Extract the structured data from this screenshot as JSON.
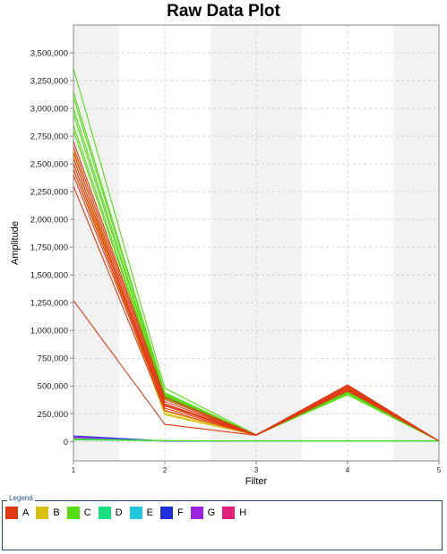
{
  "chart_data": {
    "type": "line",
    "title": "Raw Data Plot",
    "xlabel": "Filter",
    "ylabel": "Amplitude",
    "x": [
      1,
      2,
      3,
      4,
      5
    ],
    "xlim": [
      1,
      5
    ],
    "ylim": [
      -175000,
      3750000
    ],
    "x_ticks": [
      "1",
      "2",
      "3",
      "4",
      "5"
    ],
    "y_ticks": [
      0,
      250000,
      500000,
      750000,
      1000000,
      1250000,
      1500000,
      1750000,
      2000000,
      2250000,
      2500000,
      2750000,
      3000000,
      3250000,
      3500000
    ],
    "y_tick_labels": [
      "0",
      "250,000",
      "500,000",
      "750,000",
      "1,000,000",
      "1,250,000",
      "1,500,000",
      "1,750,000",
      "2,000,000",
      "2,250,000",
      "2,500,000",
      "2,750,000",
      "3,000,000",
      "3,250,000",
      "3,500,000"
    ],
    "grid": true,
    "legend_title": "Legend",
    "legend_position": "bottom",
    "series": [
      {
        "name": "A",
        "color": "#e03a14",
        "lines": [
          [
            2700000,
            400000,
            60000,
            510000,
            5000
          ],
          [
            2650000,
            380000,
            58000,
            500000,
            5000
          ],
          [
            2600000,
            360000,
            60000,
            495000,
            5000
          ],
          [
            2550000,
            340000,
            59000,
            490000,
            5000
          ],
          [
            2500000,
            330000,
            60000,
            480000,
            5000
          ],
          [
            2450000,
            320000,
            58000,
            470000,
            5000
          ],
          [
            2400000,
            300000,
            60000,
            465000,
            5000
          ],
          [
            2300000,
            280000,
            57000,
            460000,
            5000
          ],
          [
            1270000,
            155000,
            55000,
            455000,
            5000
          ]
        ]
      },
      {
        "name": "B",
        "color": "#d8c010",
        "lines": [
          [
            2560000,
            270000,
            58000,
            500000,
            5000
          ],
          [
            2620000,
            250000,
            60000,
            490000,
            5000
          ],
          [
            2500000,
            240000,
            57000,
            480000,
            5000
          ]
        ]
      },
      {
        "name": "C",
        "color": "#55dd10",
        "lines": [
          [
            3360000,
            480000,
            60000,
            420000,
            5000
          ],
          [
            3150000,
            440000,
            58000,
            430000,
            5000
          ],
          [
            3100000,
            430000,
            59000,
            440000,
            5000
          ],
          [
            3000000,
            420000,
            60000,
            440000,
            5000
          ],
          [
            2950000,
            410000,
            57000,
            450000,
            5000
          ],
          [
            2850000,
            400000,
            58000,
            450000,
            5000
          ],
          [
            2800000,
            390000,
            60000,
            445000,
            5000
          ],
          [
            20000,
            8000,
            5000,
            5000,
            5000
          ]
        ]
      },
      {
        "name": "D",
        "color": "#18e080",
        "lines": [
          [
            15000,
            6000,
            4000,
            4000,
            4000
          ]
        ]
      },
      {
        "name": "E",
        "color": "#20c8e0",
        "lines": [
          [
            25000,
            7000,
            4000,
            4000,
            4000
          ]
        ]
      },
      {
        "name": "F",
        "color": "#2030e0",
        "lines": [
          [
            50000,
            5000,
            3000,
            3000,
            3000
          ]
        ]
      },
      {
        "name": "G",
        "color": "#a020e0",
        "lines": [
          [
            40000,
            5000,
            3000,
            3000,
            3000
          ]
        ]
      },
      {
        "name": "H",
        "color": "#e0207a",
        "lines": [
          [
            30000,
            4000,
            3000,
            3000,
            3000
          ]
        ]
      }
    ]
  }
}
